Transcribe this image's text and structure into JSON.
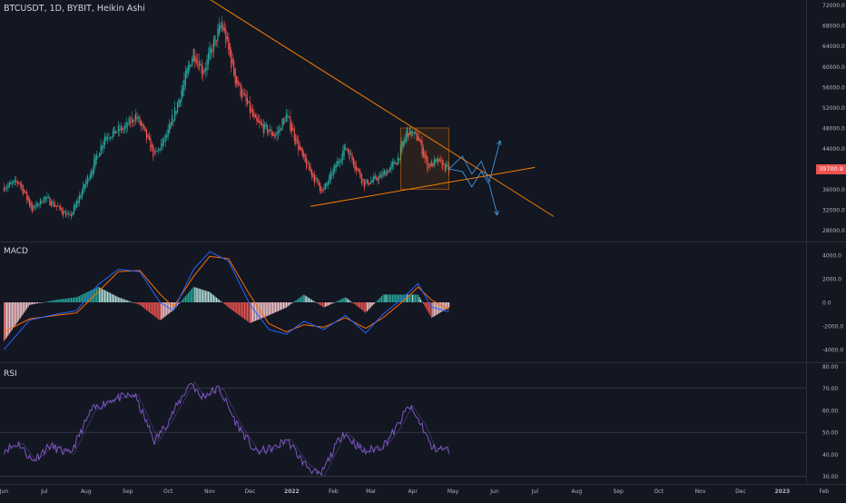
{
  "chart_data": {
    "type": "candlestick",
    "title": "BTCUSDT, 1D, BYBIT, Heikin Ashi",
    "colors": {
      "background": "#131722",
      "up": "#26a69a",
      "down": "#ef5350",
      "trendline": "#f57c00",
      "projection": "#42a5f5",
      "macd_line": "#2962ff",
      "signal_line": "#ff6d00",
      "rsi_line": "#7e57c2",
      "grid": "#2a2e39",
      "text": "#b2b5be"
    },
    "x_axis": {
      "labels": [
        "Jun",
        "Jul",
        "Aug",
        "Sep",
        "Oct",
        "Nov",
        "Dec",
        "2022",
        "Feb",
        "Mar",
        "Apr",
        "May",
        "Jun",
        "Jul",
        "Aug",
        "Sep",
        "Oct",
        "Nov",
        "Dec",
        "2023",
        "Feb"
      ],
      "label_dates": [
        "2021-06-01",
        "2021-07-01",
        "2021-08-01",
        "2021-09-01",
        "2021-10-01",
        "2021-11-01",
        "2021-12-01",
        "2022-01-01",
        "2022-02-01",
        "2022-03-01",
        "2022-04-01",
        "2022-05-01",
        "2022-06-01",
        "2022-07-01",
        "2022-08-01",
        "2022-09-01",
        "2022-10-01",
        "2022-11-01",
        "2022-12-01",
        "2023-01-01",
        "2023-02-01"
      ]
    },
    "price_axis": {
      "ticks": [
        "72000.0",
        "68000.0",
        "64000.0",
        "60000.0",
        "56000.0",
        "52000.0",
        "48000.0",
        "44000.0",
        "40000.0",
        "36000.0",
        "32000.0",
        "28000.0"
      ],
      "range": [
        26000,
        73000
      ],
      "current_price_label": "39700.9"
    },
    "price_anchors": [
      [
        "2021-06-01",
        36500
      ],
      [
        "2021-06-12",
        37500
      ],
      [
        "2021-06-22",
        32000
      ],
      [
        "2021-07-01",
        34500
      ],
      [
        "2021-07-20",
        30500
      ],
      [
        "2021-08-05",
        40000
      ],
      [
        "2021-08-15",
        46500
      ],
      [
        "2021-08-30",
        48000
      ],
      [
        "2021-09-07",
        50500
      ],
      [
        "2021-09-21",
        42500
      ],
      [
        "2021-10-01",
        47000
      ],
      [
        "2021-10-20",
        63000
      ],
      [
        "2021-10-27",
        59000
      ],
      [
        "2021-11-10",
        68500
      ],
      [
        "2021-11-20",
        57500
      ],
      [
        "2021-12-05",
        49000
      ],
      [
        "2021-12-20",
        46500
      ],
      [
        "2021-12-28",
        50500
      ],
      [
        "2022-01-10",
        41500
      ],
      [
        "2022-01-24",
        35500
      ],
      [
        "2022-02-10",
        44500
      ],
      [
        "2022-02-24",
        37000
      ],
      [
        "2022-03-08",
        38500
      ],
      [
        "2022-03-20",
        41500
      ],
      [
        "2022-03-28",
        47500
      ],
      [
        "2022-04-05",
        46000
      ],
      [
        "2022-04-12",
        40500
      ],
      [
        "2022-04-20",
        41500
      ],
      [
        "2022-04-28",
        39700
      ]
    ],
    "annotations": {
      "resistance_line": {
        "start": [
          "2021-10-31",
          73300
        ],
        "end": [
          "2022-07-15",
          30700
        ]
      },
      "support_line": {
        "start": [
          "2022-01-15",
          32700
        ],
        "end": [
          "2022-07-01",
          40300
        ]
      },
      "triangle_box": {
        "x_start": "2022-03-23",
        "x_end": "2022-04-28",
        "top_price": 48000,
        "bottom_price": 36000
      },
      "projection_up": [
        [
          "2022-04-28",
          40000
        ],
        [
          "2022-05-08",
          42500
        ],
        [
          "2022-05-15",
          39000
        ],
        [
          "2022-05-22",
          41500
        ],
        [
          "2022-05-28",
          37500
        ],
        [
          "2022-06-05",
          45500
        ]
      ],
      "projection_down": [
        [
          "2022-04-28",
          40000
        ],
        [
          "2022-05-08",
          39500
        ],
        [
          "2022-05-15",
          36500
        ],
        [
          "2022-05-22",
          39500
        ],
        [
          "2022-05-28",
          37000
        ],
        [
          "2022-06-03",
          31000
        ]
      ]
    },
    "macd": {
      "label": "MACD",
      "ticks": [
        "4000.0",
        "2000.0",
        "0.0",
        "-2000.0",
        "-4000.0"
      ],
      "range": [
        -5000,
        5000
      ],
      "macd_anchors": [
        [
          "2021-06-01",
          -4000
        ],
        [
          "2021-06-20",
          -1500
        ],
        [
          "2021-07-10",
          -1000
        ],
        [
          "2021-07-25",
          -700
        ],
        [
          "2021-08-10",
          1500
        ],
        [
          "2021-08-25",
          2800
        ],
        [
          "2021-09-10",
          2600
        ],
        [
          "2021-09-25",
          0
        ],
        [
          "2021-10-05",
          -700
        ],
        [
          "2021-10-20",
          2800
        ],
        [
          "2021-11-01",
          4300
        ],
        [
          "2021-11-15",
          3500
        ],
        [
          "2021-12-01",
          -200
        ],
        [
          "2021-12-15",
          -2300
        ],
        [
          "2021-12-28",
          -2700
        ],
        [
          "2022-01-10",
          -1600
        ],
        [
          "2022-01-25",
          -2300
        ],
        [
          "2022-02-10",
          -1100
        ],
        [
          "2022-02-25",
          -2600
        ],
        [
          "2022-03-10",
          -1000
        ],
        [
          "2022-03-25",
          400
        ],
        [
          "2022-04-05",
          1600
        ],
        [
          "2022-04-15",
          -400
        ],
        [
          "2022-04-28",
          -800
        ]
      ],
      "signal_anchors": [
        [
          "2021-06-01",
          -2500
        ],
        [
          "2021-06-20",
          -1400
        ],
        [
          "2021-07-10",
          -1100
        ],
        [
          "2021-07-25",
          -900
        ],
        [
          "2021-08-10",
          900
        ],
        [
          "2021-08-25",
          2600
        ],
        [
          "2021-09-10",
          2700
        ],
        [
          "2021-09-25",
          700
        ],
        [
          "2021-10-05",
          -400
        ],
        [
          "2021-10-20",
          2200
        ],
        [
          "2021-11-01",
          3900
        ],
        [
          "2021-11-15",
          3700
        ],
        [
          "2021-12-01",
          600
        ],
        [
          "2021-12-15",
          -1800
        ],
        [
          "2021-12-28",
          -2500
        ],
        [
          "2022-01-10",
          -1900
        ],
        [
          "2022-01-25",
          -2100
        ],
        [
          "2022-02-10",
          -1300
        ],
        [
          "2022-02-25",
          -2200
        ],
        [
          "2022-03-10",
          -1300
        ],
        [
          "2022-03-25",
          100
        ],
        [
          "2022-04-05",
          1300
        ],
        [
          "2022-04-15",
          200
        ],
        [
          "2022-04-28",
          -600
        ]
      ]
    },
    "rsi": {
      "label": "RSI",
      "ticks": [
        "80.00",
        "70.00",
        "60.00",
        "50.00",
        "40.00",
        "30.00"
      ],
      "range": [
        27,
        81
      ],
      "bands": [
        70,
        50,
        30
      ],
      "anchors": [
        [
          "2021-06-01",
          42
        ],
        [
          "2021-06-12",
          45
        ],
        [
          "2021-06-22",
          37
        ],
        [
          "2021-07-05",
          44
        ],
        [
          "2021-07-20",
          40
        ],
        [
          "2021-08-05",
          60
        ],
        [
          "2021-08-20",
          65
        ],
        [
          "2021-09-06",
          67
        ],
        [
          "2021-09-21",
          46
        ],
        [
          "2021-10-01",
          55
        ],
        [
          "2021-10-18",
          73
        ],
        [
          "2021-10-25",
          66
        ],
        [
          "2021-11-08",
          70
        ],
        [
          "2021-11-20",
          55
        ],
        [
          "2021-12-05",
          41
        ],
        [
          "2021-12-20",
          43
        ],
        [
          "2021-12-28",
          47
        ],
        [
          "2022-01-10",
          36
        ],
        [
          "2022-01-22",
          30
        ],
        [
          "2022-02-08",
          50
        ],
        [
          "2022-02-24",
          41
        ],
        [
          "2022-03-10",
          44
        ],
        [
          "2022-03-20",
          52
        ],
        [
          "2022-03-29",
          62
        ],
        [
          "2022-04-08",
          53
        ],
        [
          "2022-04-15",
          43
        ],
        [
          "2022-04-28",
          42
        ]
      ]
    }
  }
}
